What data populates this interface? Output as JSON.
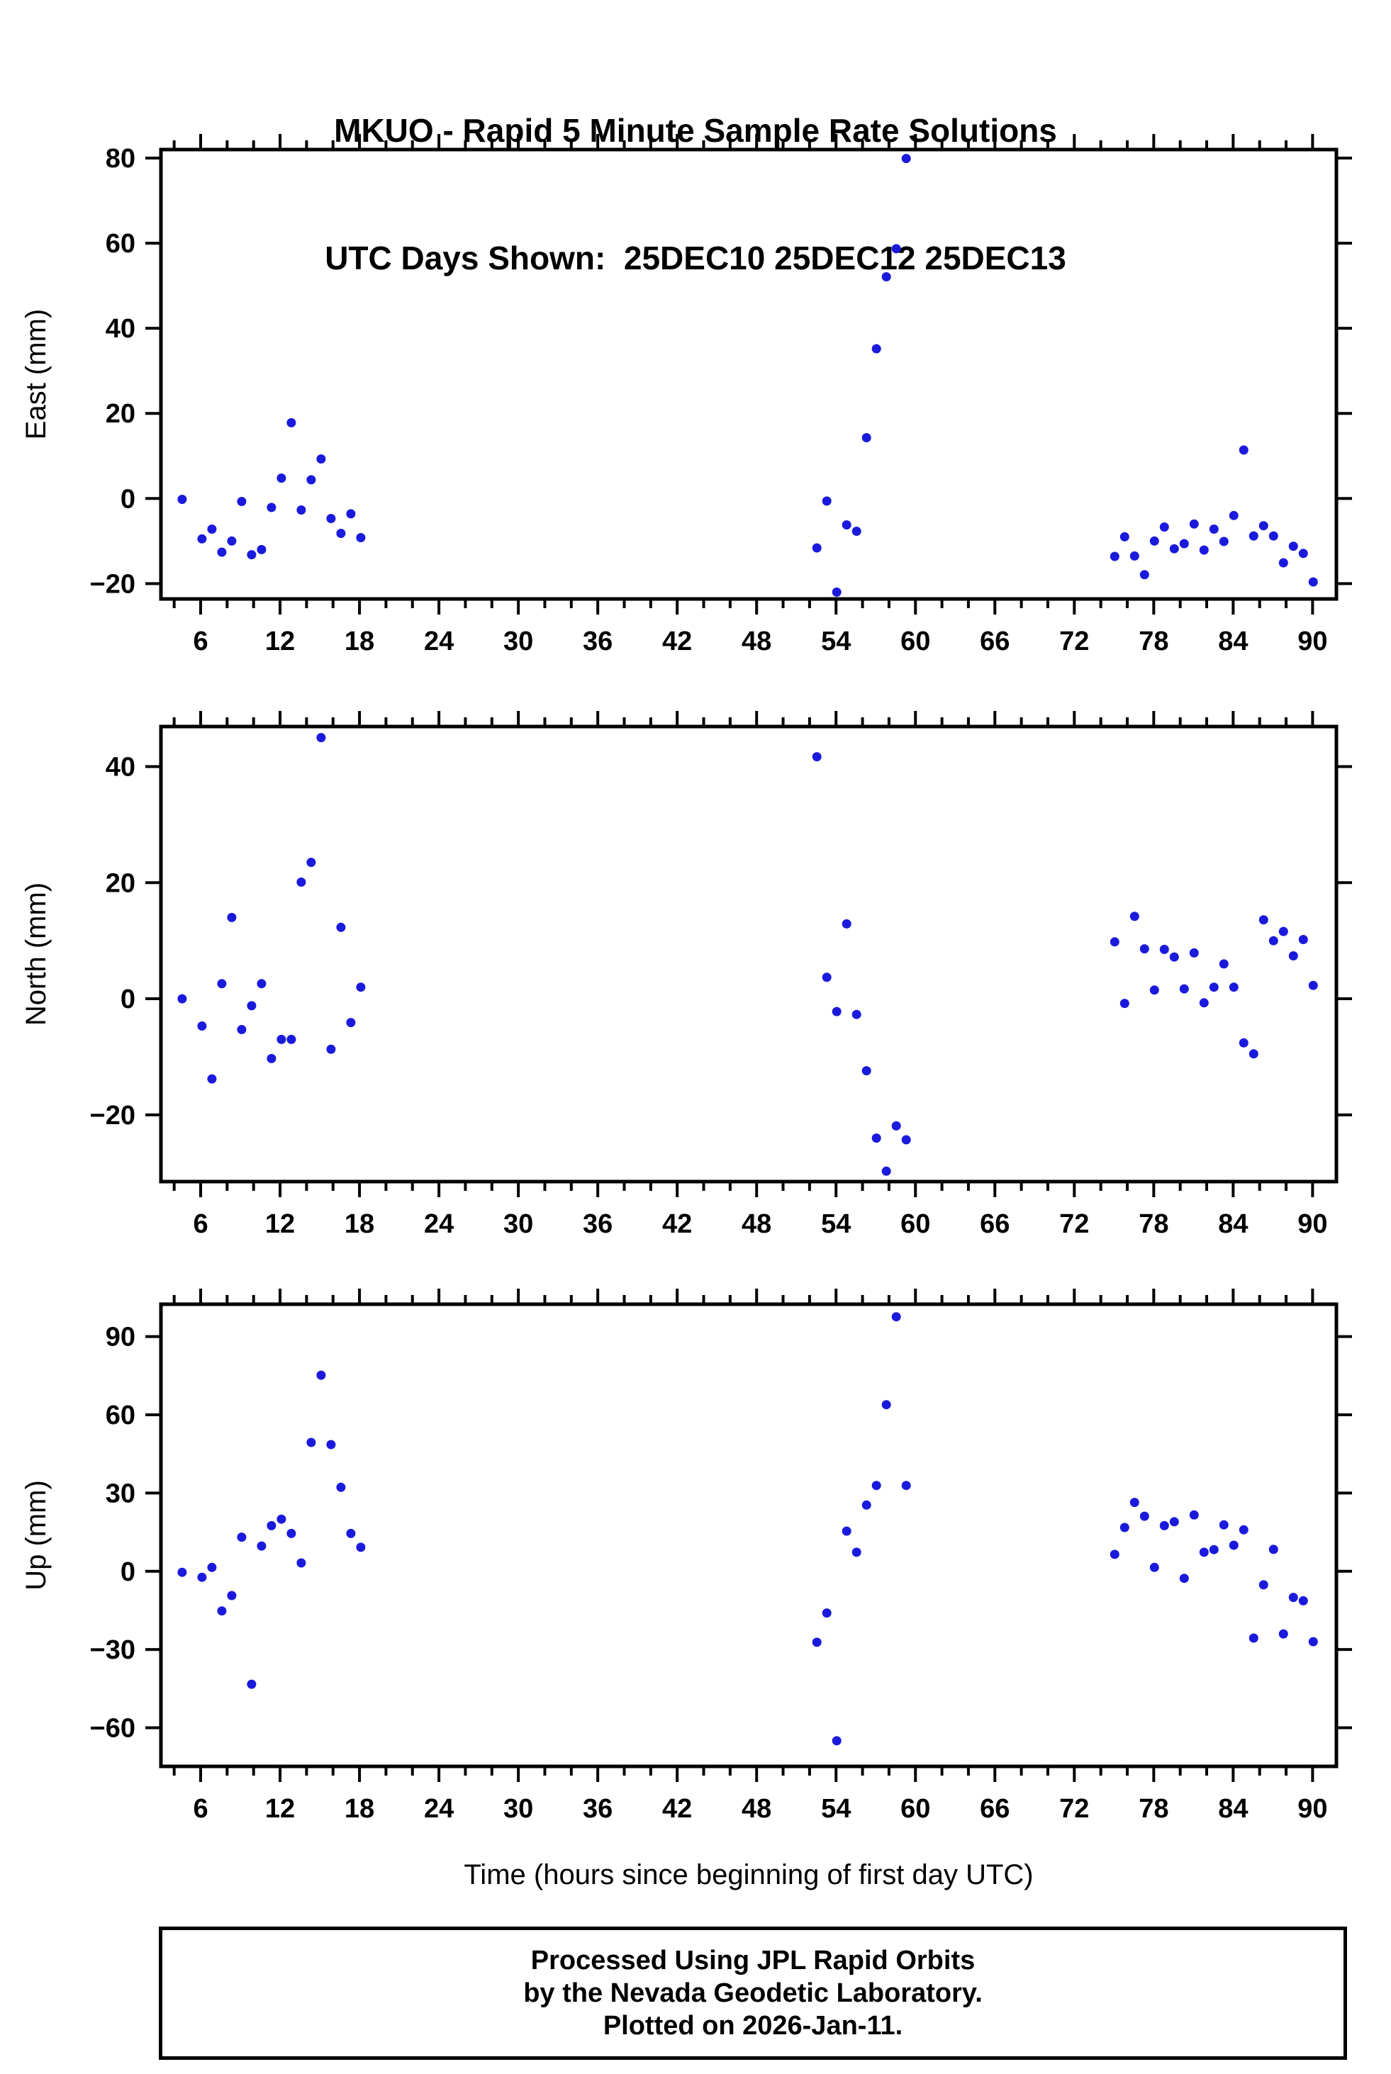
{
  "title": {
    "line1": "MKUO - Rapid 5 Minute Sample Rate Solutions",
    "line2": "UTC Days Shown:  25DEC10 25DEC12 25DEC13"
  },
  "footer": {
    "line1": "Processed Using JPL Rapid Orbits",
    "line2": "by the Nevada Geodetic Laboratory.",
    "line3": "Plotted on 2026-Jan-11."
  },
  "colors": {
    "point": "#1a1adc",
    "axis": "#000000",
    "background": "#ffffff"
  },
  "chart_data": [
    {
      "type": "scatter",
      "name": "east",
      "ylabel": "East (mm)",
      "ylim": [
        -23.6,
        82.0
      ],
      "yticks": [
        -20,
        0,
        20,
        40,
        60,
        80
      ],
      "xlim": [
        3,
        91.8
      ],
      "xticks": [
        6,
        12,
        18,
        24,
        30,
        36,
        42,
        48,
        54,
        60,
        66,
        72,
        78,
        84,
        90
      ],
      "xtick_minor_step": 2,
      "grid": false,
      "points": [
        [
          4.6,
          -0.2
        ],
        [
          6.1,
          -9.5
        ],
        [
          6.85,
          -7.2
        ],
        [
          7.6,
          -12.6
        ],
        [
          8.35,
          -10.0
        ],
        [
          9.1,
          -0.7
        ],
        [
          9.85,
          -13.2
        ],
        [
          10.6,
          -12.0
        ],
        [
          11.35,
          -2.1
        ],
        [
          12.1,
          4.8
        ],
        [
          12.85,
          17.8
        ],
        [
          13.6,
          -2.7
        ],
        [
          14.35,
          4.4
        ],
        [
          15.1,
          9.3
        ],
        [
          15.85,
          -4.7
        ],
        [
          16.6,
          -8.2
        ],
        [
          17.35,
          -3.6
        ],
        [
          18.1,
          -9.2
        ],
        [
          52.55,
          -11.6
        ],
        [
          53.3,
          -0.6
        ],
        [
          54.05,
          -22.0
        ],
        [
          54.8,
          -6.2
        ],
        [
          55.55,
          -7.7
        ],
        [
          56.3,
          14.3
        ],
        [
          57.05,
          35.2
        ],
        [
          57.8,
          52.1
        ],
        [
          58.55,
          58.7
        ],
        [
          59.3,
          79.9
        ],
        [
          75.05,
          -13.6
        ],
        [
          75.8,
          -9.0
        ],
        [
          76.55,
          -13.5
        ],
        [
          77.3,
          -17.9
        ],
        [
          78.05,
          -10.0
        ],
        [
          78.8,
          -6.7
        ],
        [
          79.55,
          -11.8
        ],
        [
          80.3,
          -10.6
        ],
        [
          81.05,
          -6.0
        ],
        [
          81.8,
          -12.1
        ],
        [
          82.55,
          -7.2
        ],
        [
          83.3,
          -10.1
        ],
        [
          84.05,
          -4.0
        ],
        [
          84.8,
          11.4
        ],
        [
          85.55,
          -8.8
        ],
        [
          86.3,
          -6.4
        ],
        [
          87.05,
          -8.8
        ],
        [
          87.8,
          -15.1
        ],
        [
          88.55,
          -11.2
        ],
        [
          89.3,
          -12.9
        ],
        [
          90.05,
          -19.6
        ]
      ]
    },
    {
      "type": "scatter",
      "name": "north",
      "ylabel": "North (mm)",
      "ylim": [
        -31.5,
        46.9
      ],
      "yticks": [
        -20,
        0,
        20,
        40
      ],
      "xlim": [
        3,
        91.8
      ],
      "xticks": [
        6,
        12,
        18,
        24,
        30,
        36,
        42,
        48,
        54,
        60,
        66,
        72,
        78,
        84,
        90
      ],
      "xtick_minor_step": 2,
      "grid": false,
      "points": [
        [
          4.6,
          0.0
        ],
        [
          6.1,
          -4.7
        ],
        [
          6.85,
          -13.8
        ],
        [
          7.6,
          2.6
        ],
        [
          8.35,
          14.0
        ],
        [
          9.1,
          -5.3
        ],
        [
          9.85,
          -1.2
        ],
        [
          10.6,
          2.6
        ],
        [
          11.35,
          -10.3
        ],
        [
          12.1,
          -7.0
        ],
        [
          12.85,
          -7.0
        ],
        [
          13.6,
          20.1
        ],
        [
          14.35,
          23.5
        ],
        [
          15.1,
          45.0
        ],
        [
          15.85,
          -8.7
        ],
        [
          16.6,
          12.3
        ],
        [
          17.35,
          -4.1
        ],
        [
          18.1,
          2.0
        ],
        [
          52.55,
          41.7
        ],
        [
          53.3,
          3.7
        ],
        [
          54.05,
          -2.2
        ],
        [
          54.8,
          12.9
        ],
        [
          55.55,
          -2.7
        ],
        [
          56.3,
          -12.4
        ],
        [
          57.05,
          -24.0
        ],
        [
          57.8,
          -29.7
        ],
        [
          58.55,
          -21.9
        ],
        [
          59.3,
          -24.3
        ],
        [
          75.05,
          9.8
        ],
        [
          75.8,
          -0.8
        ],
        [
          76.55,
          14.2
        ],
        [
          77.3,
          8.6
        ],
        [
          78.05,
          1.5
        ],
        [
          78.8,
          8.5
        ],
        [
          79.55,
          7.2
        ],
        [
          80.3,
          1.7
        ],
        [
          81.05,
          7.9
        ],
        [
          81.8,
          -0.7
        ],
        [
          82.55,
          2.0
        ],
        [
          83.3,
          6.0
        ],
        [
          84.05,
          2.0
        ],
        [
          84.8,
          -7.6
        ],
        [
          85.55,
          -9.5
        ],
        [
          86.3,
          13.6
        ],
        [
          87.05,
          10.0
        ],
        [
          87.8,
          11.6
        ],
        [
          88.55,
          7.4
        ],
        [
          89.3,
          10.2
        ],
        [
          90.05,
          2.3
        ]
      ]
    },
    {
      "type": "scatter",
      "name": "up",
      "ylabel": "Up (mm)",
      "xlabel": "Time (hours since beginning of first day UTC)",
      "ylim": [
        -74.8,
        102.4
      ],
      "yticks": [
        -60,
        -30,
        0,
        30,
        60,
        90
      ],
      "xlim": [
        3,
        91.8
      ],
      "xticks": [
        6,
        12,
        18,
        24,
        30,
        36,
        42,
        48,
        54,
        60,
        66,
        72,
        78,
        84,
        90
      ],
      "xtick_minor_step": 2,
      "grid": false,
      "points": [
        [
          4.6,
          -0.4
        ],
        [
          6.1,
          -2.3
        ],
        [
          6.85,
          1.5
        ],
        [
          7.6,
          -15.2
        ],
        [
          8.35,
          -9.3
        ],
        [
          9.1,
          13.1
        ],
        [
          9.85,
          -43.3
        ],
        [
          10.6,
          9.7
        ],
        [
          11.35,
          17.5
        ],
        [
          12.1,
          20.0
        ],
        [
          12.85,
          14.5
        ],
        [
          13.6,
          3.2
        ],
        [
          14.35,
          49.4
        ],
        [
          15.1,
          75.2
        ],
        [
          15.85,
          48.6
        ],
        [
          16.6,
          32.2
        ],
        [
          17.35,
          14.5
        ],
        [
          18.1,
          9.2
        ],
        [
          52.55,
          -27.2
        ],
        [
          53.3,
          -16.0
        ],
        [
          54.05,
          -65.0
        ],
        [
          54.8,
          15.4
        ],
        [
          55.55,
          7.3
        ],
        [
          56.3,
          25.4
        ],
        [
          57.05,
          32.9
        ],
        [
          57.8,
          63.9
        ],
        [
          58.55,
          97.6
        ],
        [
          59.3,
          32.9
        ],
        [
          75.05,
          6.5
        ],
        [
          75.8,
          16.8
        ],
        [
          76.55,
          26.4
        ],
        [
          77.3,
          21.1
        ],
        [
          78.05,
          1.5
        ],
        [
          78.8,
          17.5
        ],
        [
          79.55,
          19.0
        ],
        [
          80.3,
          -2.7
        ],
        [
          81.05,
          21.6
        ],
        [
          81.8,
          7.3
        ],
        [
          82.55,
          8.3
        ],
        [
          83.3,
          17.8
        ],
        [
          84.05,
          10.0
        ],
        [
          84.8,
          15.9
        ],
        [
          85.55,
          -25.6
        ],
        [
          86.3,
          -5.2
        ],
        [
          87.05,
          8.4
        ],
        [
          87.8,
          -24.0
        ],
        [
          88.55,
          -10.0
        ],
        [
          89.3,
          -11.3
        ],
        [
          90.05,
          -27.0
        ]
      ]
    }
  ]
}
